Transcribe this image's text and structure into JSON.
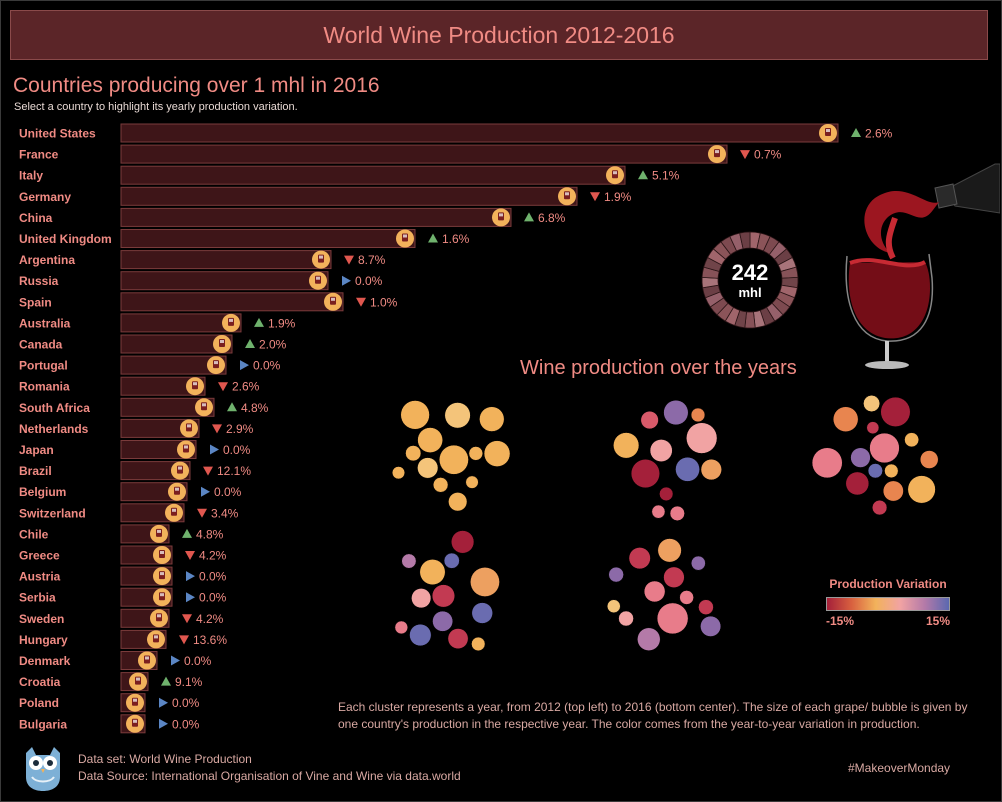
{
  "header": {
    "title": "World Wine Production 2012-2016"
  },
  "bar_section": {
    "title": "Countries producing over 1 mhl in 2016",
    "subtitle": "Select a country to highlight its yearly production variation."
  },
  "donut": {
    "value": "242",
    "unit": "mhl"
  },
  "clusters_section": {
    "title": "Wine production over the years"
  },
  "legend": {
    "title": "Production Variation",
    "min_label": "-15%",
    "max_label": "15%"
  },
  "description": "Each cluster represents a year, from 2012 (top left) to 2016 (bottom center). The size of each grape/ bubble is given by one country's production in the respective year. The color comes from the year-to-year variation in production.",
  "footer": {
    "dataset": "Data set: World Wine Production",
    "source": "Data Source: International Organisation of Vine and Wine via data.world",
    "hashtag": "#MakeoverMonday"
  },
  "colors": {
    "bar_fill": "#3e1518",
    "bar_stroke": "#7a3b3b",
    "label": "#f08b84",
    "up": "#6fb26d",
    "down": "#e0574f",
    "flat": "#5b86c4",
    "marker": "#f2b25b"
  },
  "chart_data": [
    {
      "type": "bar",
      "orientation": "horizontal",
      "title": "Countries producing over 1 mhl in 2016",
      "unit": "mhl",
      "categories": [
        "United States",
        "France",
        "Italy",
        "Germany",
        "China",
        "United Kingdom",
        "Argentina",
        "Russia",
        "Spain",
        "Australia",
        "Canada",
        "Portugal",
        "Romania",
        "South Africa",
        "Netherlands",
        "Japan",
        "Brazil",
        "Belgium",
        "Switzerland",
        "Chile",
        "Greece",
        "Austria",
        "Serbia",
        "Sweden",
        "Hungary",
        "Denmark",
        "Croatia",
        "Poland",
        "Bulgaria"
      ],
      "values": [
        23.9,
        20.2,
        16.8,
        15.2,
        13.0,
        9.8,
        7.0,
        6.9,
        7.4,
        4.0,
        3.7,
        3.5,
        2.8,
        3.1,
        2.6,
        2.5,
        2.3,
        2.2,
        2.1,
        1.6,
        1.7,
        1.7,
        1.7,
        1.6,
        1.5,
        1.2,
        0.9,
        0.8,
        0.8
      ],
      "variation_labels": [
        "2.6%",
        "0.7%",
        "5.1%",
        "1.9%",
        "6.8%",
        "1.6%",
        "8.7%",
        "0.0%",
        "1.0%",
        "1.9%",
        "2.0%",
        "0.0%",
        "2.6%",
        "4.8%",
        "2.9%",
        "0.0%",
        "12.1%",
        "0.0%",
        "3.4%",
        "4.8%",
        "4.2%",
        "0.0%",
        "0.0%",
        "4.2%",
        "13.6%",
        "0.0%",
        "9.1%",
        "0.0%",
        "0.0%"
      ],
      "variation_direction": [
        "up",
        "down",
        "up",
        "down",
        "up",
        "up",
        "down",
        "flat",
        "down",
        "up",
        "up",
        "flat",
        "down",
        "up",
        "down",
        "flat",
        "down",
        "flat",
        "down",
        "up",
        "down",
        "flat",
        "flat",
        "down",
        "down",
        "flat",
        "up",
        "flat",
        "flat"
      ],
      "xlim": [
        0,
        25
      ]
    },
    {
      "type": "pie",
      "value": 242,
      "unit": "mhl"
    },
    {
      "type": "bubble-cluster",
      "title": "Wine production over the years",
      "years": [
        2012,
        2013,
        2014,
        2015,
        2016
      ],
      "color_scale": {
        "label": "Production Variation",
        "min": -15,
        "max": 15,
        "unit": "%"
      }
    }
  ]
}
